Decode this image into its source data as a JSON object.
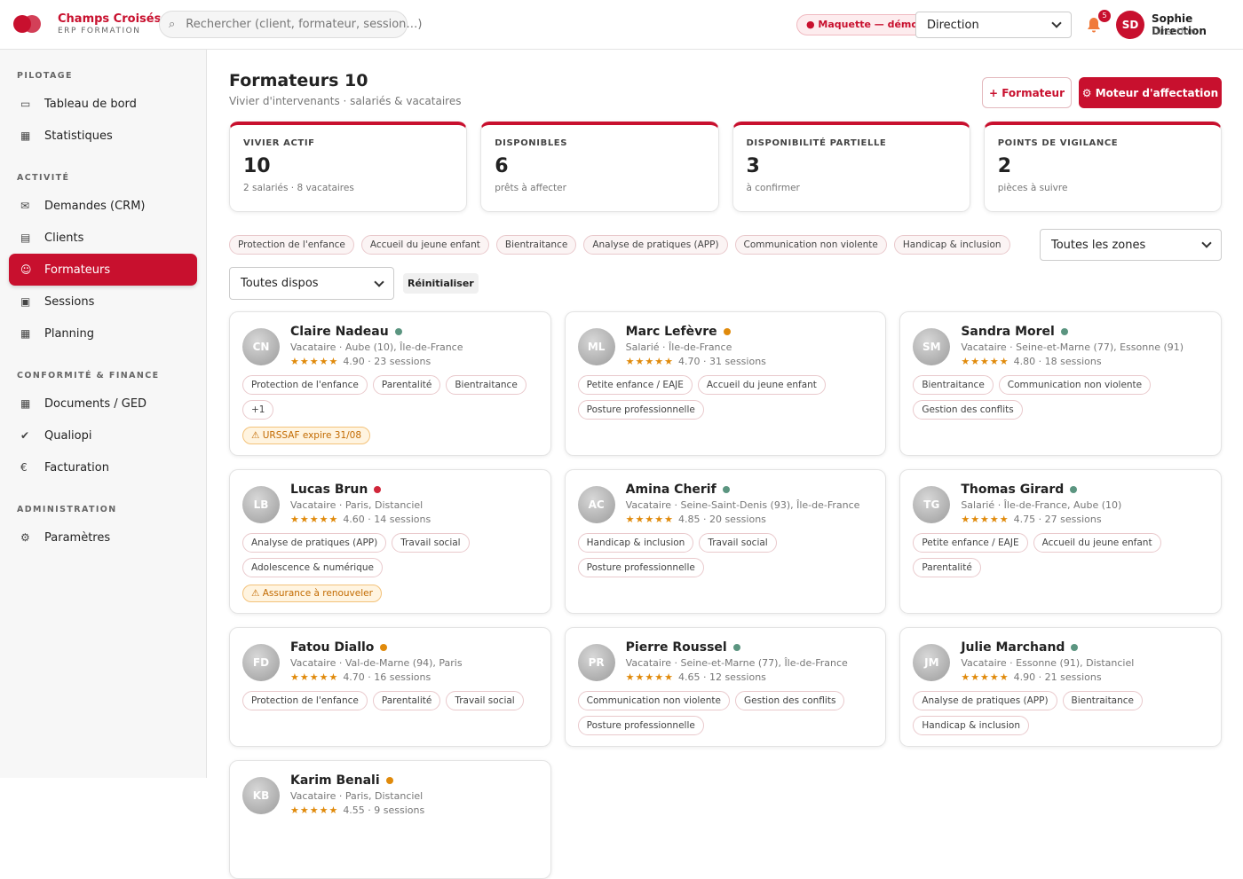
{
  "header": {
    "brand": "Champs Croisés",
    "subtitle": "ERP FORMATION",
    "search_icon": "⌕",
    "search_placeholder": "Rechercher (client, formateur, session…)",
    "badge": "● Maquette — démo",
    "role_select": "Direction",
    "notifications": "5",
    "user_initials": "SD",
    "user_name": "Sophie Direction",
    "user_role": "Direction"
  },
  "sidebar": {
    "sections": [
      {
        "title": "PILOTAGE",
        "items": [
          {
            "icon": "▭",
            "label": "Tableau de bord"
          },
          {
            "icon": "▦",
            "label": "Statistiques"
          }
        ]
      },
      {
        "title": "ACTIVITÉ",
        "items": [
          {
            "icon": "✉",
            "label": "Demandes (CRM)"
          },
          {
            "icon": "▤",
            "label": "Clients"
          },
          {
            "icon": "☺",
            "label": "Formateurs",
            "active": true
          },
          {
            "icon": "▣",
            "label": "Sessions"
          },
          {
            "icon": "▦",
            "label": "Planning"
          }
        ]
      },
      {
        "title": "CONFORMITÉ & FINANCE",
        "items": [
          {
            "icon": "▦",
            "label": "Documents / GED"
          },
          {
            "icon": "✔",
            "label": "Qualiopi"
          },
          {
            "icon": "€",
            "label": "Facturation"
          }
        ]
      },
      {
        "title": "ADMINISTRATION",
        "items": [
          {
            "icon": "⚙",
            "label": "Paramètres"
          }
        ]
      }
    ]
  },
  "page": {
    "title": "Formateurs 10",
    "subtitle": "Vivier d'intervenants · salariés & vacataires",
    "button_add": "+ Formateur",
    "button_engine": "⚙ Moteur d'affectation"
  },
  "kpis": [
    {
      "label": "VIVIER ACTIF",
      "value": "10",
      "note": "2 salariés · 8 vacataires"
    },
    {
      "label": "DISPONIBLES",
      "value": "6",
      "note": "prêts à affecter"
    },
    {
      "label": "DISPONIBILITÉ PARTIELLE",
      "value": "3",
      "note": "à confirmer"
    },
    {
      "label": "POINTS DE VIGILANCE",
      "value": "2",
      "note": "pièces à suivre"
    }
  ],
  "filters": {
    "tags": [
      "Protection de l'enfance",
      "Accueil du jeune enfant",
      "Bientraitance",
      "Analyse de pratiques (APP)",
      "Communication non violente",
      "Handicap & inclusion"
    ],
    "zone_select": "Toutes les zones",
    "dispo_select": "Toutes dispos",
    "reset": "Réinitialiser"
  },
  "trainers": [
    {
      "initials": "CN",
      "name": "Claire Nadeau",
      "status_color": "#5b9580",
      "details": "Vacataire · Aube (10), Île-de-France",
      "stars": "★★★★★",
      "rating": "4.90 · 23 sessions",
      "tags": [
        "Protection de l'enfance",
        "Parentalité",
        "Bientraitance",
        "+1"
      ],
      "alert": "⚠ URSSAF expire 31/08"
    },
    {
      "initials": "ML",
      "name": "Marc Lefèvre",
      "status_color": "#e08a0b",
      "details": "Salarié · Île-de-France",
      "stars": "★★★★★",
      "rating": "4.70 · 31 sessions",
      "tags": [
        "Petite enfance / EAJE",
        "Accueil du jeune enfant",
        "Posture professionnelle"
      ]
    },
    {
      "initials": "SM",
      "name": "Sandra Morel",
      "status_color": "#5b9580",
      "details": "Vacataire · Seine-et-Marne (77), Essonne (91)",
      "stars": "★★★★★",
      "rating": "4.80 · 18 sessions",
      "tags": [
        "Bientraitance",
        "Communication non violente",
        "Gestion des conflits"
      ]
    },
    {
      "initials": "LB",
      "name": "Lucas Brun",
      "status_color": "#d0263a",
      "details": "Vacataire · Paris, Distanciel",
      "stars": "★★★★★",
      "rating": "4.60 · 14 sessions",
      "tags": [
        "Analyse de pratiques (APP)",
        "Travail social",
        "Adolescence & numérique"
      ],
      "alert": "⚠ Assurance à renouveler"
    },
    {
      "initials": "AC",
      "name": "Amina Cherif",
      "status_color": "#5b9580",
      "details": "Vacataire · Seine-Saint-Denis (93), Île-de-France",
      "stars": "★★★★★",
      "rating": "4.85 · 20 sessions",
      "tags": [
        "Handicap & inclusion",
        "Travail social",
        "Posture professionnelle"
      ]
    },
    {
      "initials": "TG",
      "name": "Thomas Girard",
      "status_color": "#5b9580",
      "details": "Salarié · Île-de-France, Aube (10)",
      "stars": "★★★★★",
      "rating": "4.75 · 27 sessions",
      "tags": [
        "Petite enfance / EAJE",
        "Accueil du jeune enfant",
        "Parentalité"
      ]
    },
    {
      "initials": "FD",
      "name": "Fatou Diallo",
      "status_color": "#e08a0b",
      "details": "Vacataire · Val-de-Marne (94), Paris",
      "stars": "★★★★★",
      "rating": "4.70 · 16 sessions",
      "tags": [
        "Protection de l'enfance",
        "Parentalité",
        "Travail social"
      ]
    },
    {
      "initials": "PR",
      "name": "Pierre Roussel",
      "status_color": "#5b9580",
      "details": "Vacataire · Seine-et-Marne (77), Île-de-France",
      "stars": "★★★★★",
      "rating": "4.65 · 12 sessions",
      "tags": [
        "Communication non violente",
        "Gestion des conflits",
        "Posture professionnelle"
      ]
    },
    {
      "initials": "JM",
      "name": "Julie Marchand",
      "status_color": "#5b9580",
      "details": "Vacataire · Essonne (91), Distanciel",
      "stars": "★★★★★",
      "rating": "4.90 · 21 sessions",
      "tags": [
        "Analyse de pratiques (APP)",
        "Bientraitance",
        "Handicap & inclusion"
      ]
    },
    {
      "initials": "KB",
      "name": "Karim Benali",
      "status_color": "#e08a0b",
      "details": "Vacataire · Paris, Distanciel",
      "stars": "★★★★★",
      "rating": "4.55 · 9 sessions",
      "tags": []
    }
  ]
}
